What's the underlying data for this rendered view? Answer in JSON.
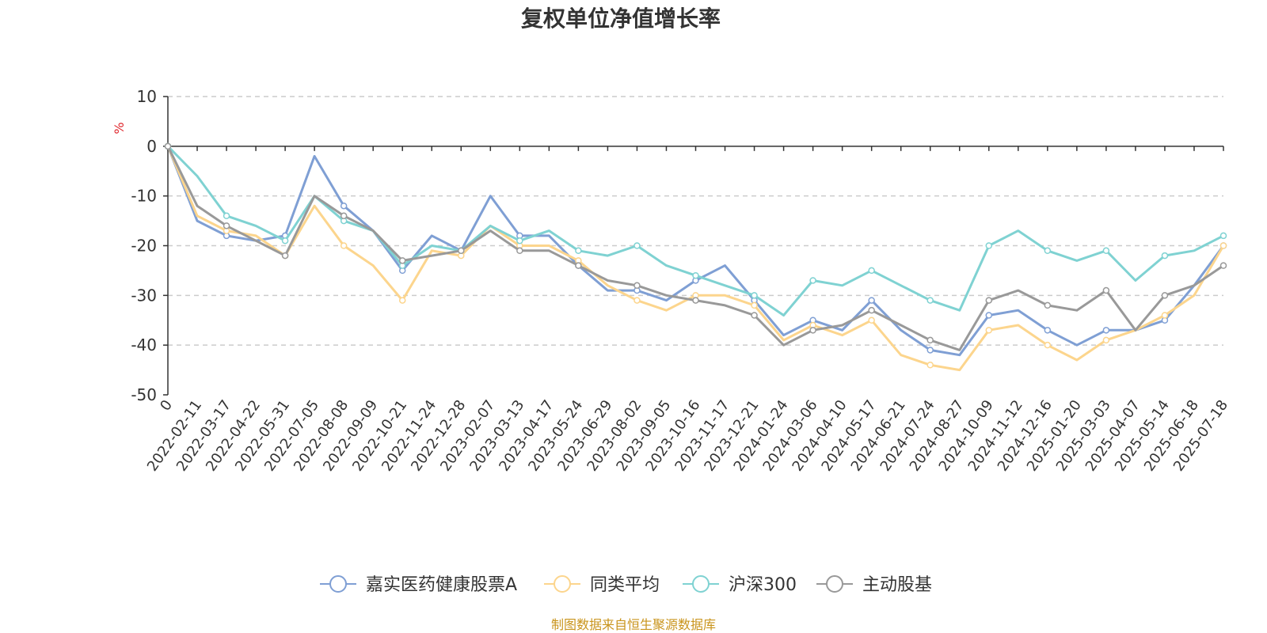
{
  "chart_data": {
    "type": "line",
    "title": "复权单位净值增长率",
    "ylabel": "%",
    "ylim": [
      -50,
      10
    ],
    "yticks": [
      10,
      0,
      -10,
      -20,
      -30,
      -40,
      -50
    ],
    "grid": true,
    "legend_position": "bottom",
    "source": "制图数据来自恒生聚源数据库",
    "x": [
      "0",
      "2022-02-11",
      "2022-03-17",
      "2022-04-22",
      "2022-05-31",
      "2022-07-05",
      "2022-08-08",
      "2022-09-09",
      "2022-10-21",
      "2022-11-24",
      "2022-12-28",
      "2023-02-07",
      "2023-03-13",
      "2023-04-17",
      "2023-05-24",
      "2023-06-29",
      "2023-08-02",
      "2023-09-05",
      "2023-10-16",
      "2023-11-17",
      "2023-12-21",
      "2024-01-24",
      "2024-03-06",
      "2024-04-10",
      "2024-05-17",
      "2024-06-21",
      "2024-07-24",
      "2024-08-27",
      "2024-10-09",
      "2024-11-12",
      "2024-12-16",
      "2025-01-20",
      "2025-03-03",
      "2025-04-07",
      "2025-05-14",
      "2025-06-18",
      "2025-07-18"
    ],
    "series": [
      {
        "name": "嘉实医药健康股票A",
        "color": "#7f9fd4",
        "values": [
          0,
          -15,
          -18,
          -19,
          -18,
          -2,
          -12,
          -17,
          -25,
          -18,
          -21,
          -10,
          -18,
          -18,
          -24,
          -29,
          -29,
          -31,
          -27,
          -24,
          -31,
          -38,
          -35,
          -37,
          -31,
          -37,
          -41,
          -42,
          -34,
          -33,
          -37,
          -40,
          -37,
          -37,
          -35,
          -28,
          -20
        ]
      },
      {
        "name": "同类平均",
        "color": "#fcd58d",
        "values": [
          0,
          -14,
          -17,
          -18,
          -22,
          -12,
          -20,
          -24,
          -31,
          -21,
          -22,
          -16,
          -20,
          -20,
          -23,
          -28,
          -31,
          -33,
          -30,
          -30,
          -32,
          -39,
          -36,
          -38,
          -35,
          -42,
          -44,
          -45,
          -37,
          -36,
          -40,
          -43,
          -39,
          -37,
          -34,
          -30,
          -20
        ]
      },
      {
        "name": "沪深300",
        "color": "#7fd2d2",
        "values": [
          0,
          -6,
          -14,
          -16,
          -19,
          -10,
          -15,
          -17,
          -24,
          -20,
          -21,
          -16,
          -19,
          -17,
          -21,
          -22,
          -20,
          -24,
          -26,
          -28,
          -30,
          -34,
          -27,
          -28,
          -25,
          -28,
          -31,
          -33,
          -20,
          -17,
          -21,
          -23,
          -21,
          -27,
          -22,
          -21,
          -18
        ]
      },
      {
        "name": "主动股基",
        "color": "#999999",
        "values": [
          0,
          -12,
          -16,
          -19,
          -22,
          -10,
          -14,
          -17,
          -23,
          -22,
          -21,
          -17,
          -21,
          -21,
          -24,
          -27,
          -28,
          -30,
          -31,
          -32,
          -34,
          -40,
          -37,
          -36,
          -33,
          -36,
          -39,
          -41,
          -31,
          -29,
          -32,
          -33,
          -29,
          -37,
          -30,
          -28,
          -24
        ]
      }
    ]
  }
}
